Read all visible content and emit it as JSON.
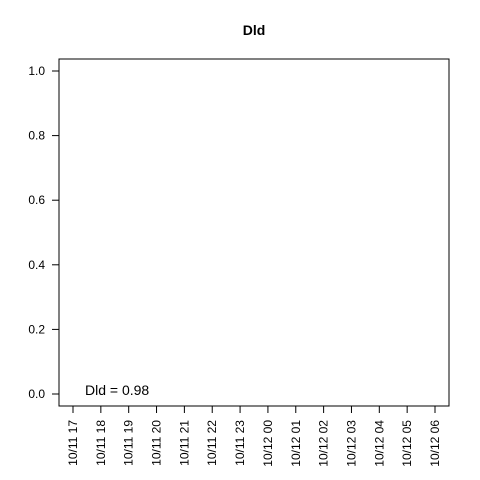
{
  "chart_data": {
    "type": "line",
    "title": "Dld",
    "xlabel": "",
    "ylabel": "",
    "x_tick_labels": [
      "10/11 17",
      "10/11 18",
      "10/11 19",
      "10/11 20",
      "10/11 21",
      "10/11 22",
      "10/11 23",
      "10/12 00",
      "10/12 01",
      "10/12 02",
      "10/12 03",
      "10/12 04",
      "10/12 05",
      "10/12 06"
    ],
    "y_ticks": [
      0.0,
      0.2,
      0.4,
      0.6,
      0.8,
      1.0
    ],
    "y_tick_labels": [
      "0.0",
      "0.2",
      "0.4",
      "0.6",
      "0.8",
      "1.0"
    ],
    "ylim": [
      0.0,
      1.0
    ],
    "grid": false,
    "series": [],
    "annotation": "Dld = 0.98"
  }
}
